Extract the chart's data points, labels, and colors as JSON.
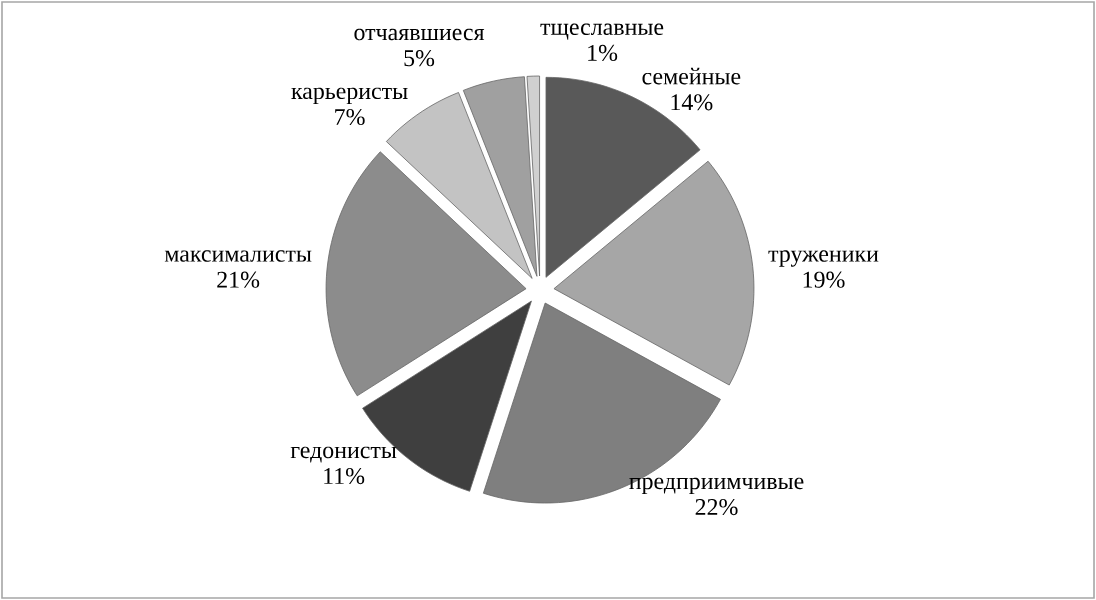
{
  "chart_data": {
    "type": "pie",
    "categories": [
      "семейные",
      "труженики",
      "предприимчивые",
      "гедонисты",
      "максималисты",
      "карьеристы",
      "отчаявшиеся",
      "тщеславные"
    ],
    "values": [
      14,
      19,
      22,
      11,
      21,
      7,
      5,
      1
    ],
    "value_labels": [
      "14%",
      "19%",
      "22%",
      "11%",
      "21%",
      "7%",
      "5%",
      "1%"
    ],
    "colors": [
      "#595959",
      "#a6a6a6",
      "#7f7f7f",
      "#3f3f3f",
      "#8c8c8c",
      "#c3c3c3",
      "#a0a0a0",
      "#d0d0d0"
    ]
  }
}
